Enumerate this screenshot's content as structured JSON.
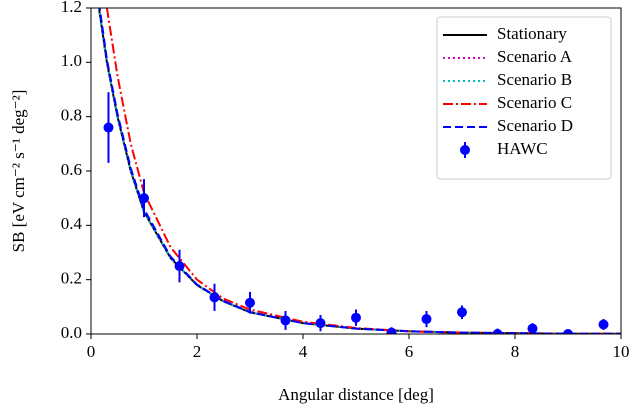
{
  "chart_data": {
    "type": "line",
    "xlabel": "Angular distance [deg]",
    "ylabel": "SB [eV cm⁻² s⁻¹ deg⁻²]",
    "x": [
      0.15,
      0.3,
      0.5,
      0.75,
      1,
      1.5,
      2,
      2.5,
      3,
      4,
      5,
      6,
      7,
      8,
      9,
      10
    ],
    "series": [
      {
        "name": "Stationary",
        "color": "#000000",
        "linestyle": "solid",
        "values": [
          1.2,
          1.0,
          0.8,
          0.6,
          0.45,
          0.28,
          0.18,
          0.12,
          0.08,
          0.04,
          0.02,
          0.01,
          0.005,
          0.003,
          0.001,
          0.001
        ]
      },
      {
        "name": "Scenario A",
        "color": "#cc00cc",
        "linestyle": "dotted",
        "values": [
          1.2,
          1.0,
          0.8,
          0.6,
          0.45,
          0.28,
          0.18,
          0.12,
          0.08,
          0.04,
          0.02,
          0.01,
          0.005,
          0.003,
          0.001,
          0.001
        ]
      },
      {
        "name": "Scenario B",
        "color": "#00bfbf",
        "linestyle": "dotted",
        "values": [
          1.2,
          1.0,
          0.8,
          0.6,
          0.45,
          0.28,
          0.18,
          0.12,
          0.08,
          0.04,
          0.02,
          0.01,
          0.005,
          0.003,
          0.001,
          0.001
        ]
      },
      {
        "name": "Scenario C",
        "color": "#ff0000",
        "linestyle": "dashdot",
        "values": [
          null,
          1.2,
          0.95,
          0.7,
          0.52,
          0.32,
          0.2,
          0.13,
          0.09,
          0.045,
          0.022,
          0.01,
          0.005,
          0.003,
          0.001,
          0.001
        ]
      },
      {
        "name": "Scenario D",
        "color": "#0000ff",
        "linestyle": "dashed",
        "values": [
          1.22,
          1.01,
          0.81,
          0.61,
          0.46,
          0.285,
          0.182,
          0.122,
          0.081,
          0.04,
          0.02,
          0.01,
          0.005,
          0.003,
          0.001,
          0.001
        ]
      },
      {
        "name": "HAWC",
        "color": "#0000ff",
        "type": "errorbar",
        "x": [
          0.33,
          1.0,
          1.67,
          2.33,
          3.0,
          3.67,
          4.33,
          5.0,
          5.67,
          6.33,
          7.0,
          7.67,
          8.33,
          9.0,
          9.67
        ],
        "values": [
          0.76,
          0.5,
          0.25,
          0.135,
          0.115,
          0.05,
          0.04,
          0.06,
          0.005,
          0.055,
          0.08,
          0,
          0.02,
          0,
          0.035
        ],
        "errors": [
          0.13,
          0.07,
          0.06,
          0.05,
          0.04,
          0.035,
          0.03,
          0.03,
          0.02,
          0.03,
          0.025,
          0.02,
          0.02,
          0.015,
          0.02
        ]
      }
    ],
    "xlim": [
      0,
      10
    ],
    "xticks": [
      0,
      2,
      4,
      6,
      8,
      10
    ],
    "ylim": [
      0,
      1.2
    ],
    "yticks": [
      {
        "value": 0,
        "label": "0.0"
      },
      {
        "value": 0.2,
        "label": "0.2"
      },
      {
        "value": 0.4,
        "label": "0.4"
      },
      {
        "value": 0.6,
        "label": "0.6"
      },
      {
        "value": 0.8,
        "label": "0.8"
      },
      {
        "value": 1.0,
        "label": "1.0"
      },
      {
        "value": 1.2,
        "label": "1.2"
      }
    ],
    "legend": "upper right"
  }
}
